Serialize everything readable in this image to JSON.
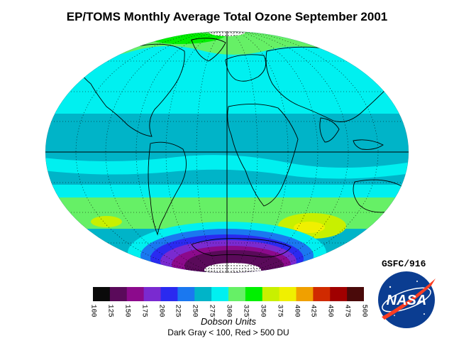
{
  "title": "EP/TOMS Monthly Average Total Ozone September 2001",
  "colorbar": {
    "labels": [
      "100",
      "125",
      "150",
      "175",
      "200",
      "225",
      "250",
      "275",
      "300",
      "325",
      "350",
      "375",
      "400",
      "425",
      "450",
      "475",
      "500"
    ],
    "colors": [
      "#0a0a0a",
      "#5a0a5a",
      "#8c0a8c",
      "#7a2ad0",
      "#2a2af0",
      "#1a78f0",
      "#00b4c8",
      "#00f0f0",
      "#66f066",
      "#00f000",
      "#c8f000",
      "#f0f000",
      "#f0a000",
      "#d02a00",
      "#a00000",
      "#4a0a0a"
    ],
    "units_label": "Dobson Units",
    "note": "Dark Gray < 100, Red > 500 DU"
  },
  "credit": "GSFC/916",
  "logo_text": "NASA",
  "map": {
    "projection": "Hammer-Aitoff (elliptical)",
    "ozone_bands": [
      {
        "region": "north-polar",
        "color": "#66f066"
      },
      {
        "region": "northern-midlatitudes",
        "color": "#00f0f0"
      },
      {
        "region": "tropics",
        "color": "#00b4c8"
      },
      {
        "region": "southern-midlatitudes",
        "color": "#c8f000"
      },
      {
        "region": "antarctic-ozone-hole",
        "color": "#5a0a5a"
      }
    ]
  }
}
